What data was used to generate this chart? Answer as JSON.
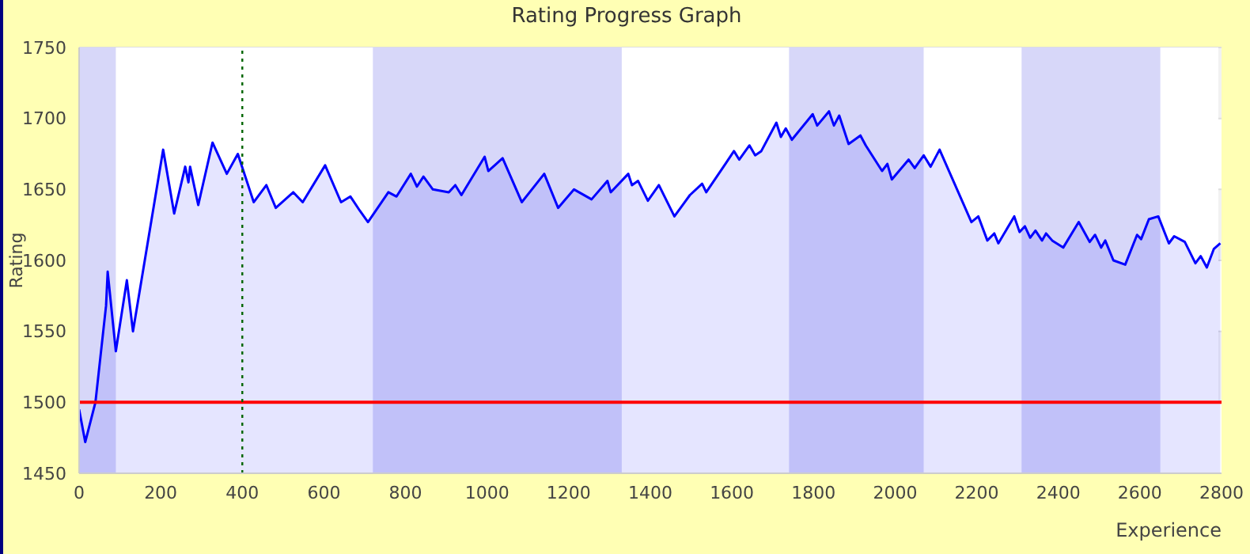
{
  "chart_data": {
    "type": "area",
    "title": "Rating Progress Graph",
    "xlabel": "Experience",
    "ylabel": "Rating",
    "x": [
      0,
      15,
      40,
      66,
      70,
      90,
      117,
      132,
      206,
      233,
      260,
      268,
      272,
      292,
      327,
      362,
      389,
      428,
      459,
      482,
      525,
      548,
      603,
      642,
      665,
      688,
      708,
      758,
      778,
      813,
      828,
      844,
      867,
      906,
      922,
      937,
      994,
      1003,
      1038,
      1085,
      1140,
      1174,
      1213,
      1256,
      1295,
      1303,
      1346,
      1355,
      1370,
      1394,
      1421,
      1459,
      1497,
      1527,
      1537,
      1584,
      1605,
      1618,
      1643,
      1657,
      1672,
      1709,
      1720,
      1732,
      1747,
      1798,
      1809,
      1838,
      1850,
      1863,
      1886,
      1915,
      1928,
      1968,
      1981,
      1992,
      2033,
      2048,
      2070,
      2087,
      2109,
      2187,
      2204,
      2226,
      2243,
      2253,
      2292,
      2305,
      2318,
      2331,
      2344,
      2360,
      2370,
      2385,
      2412,
      2450,
      2477,
      2490,
      2505,
      2515,
      2535,
      2564,
      2593,
      2603,
      2622,
      2645,
      2671,
      2684,
      2710,
      2736,
      2749,
      2764,
      2781,
      2797
    ],
    "series": [
      {
        "color": "#0000ff",
        "values": [
          1495,
          1472,
          1500,
          1568,
          1592,
          1536,
          1586,
          1550,
          1678,
          1633,
          1666,
          1655,
          1666,
          1639,
          1683,
          1661,
          1675,
          1641,
          1653,
          1637,
          1648,
          1641,
          1667,
          1641,
          1645,
          1635,
          1627,
          1648,
          1645,
          1661,
          1652,
          1659,
          1650,
          1648,
          1653,
          1646,
          1673,
          1663,
          1672,
          1641,
          1661,
          1637,
          1650,
          1643,
          1656,
          1648,
          1661,
          1653,
          1656,
          1642,
          1653,
          1631,
          1646,
          1654,
          1648,
          1668,
          1677,
          1671,
          1681,
          1674,
          1677,
          1697,
          1687,
          1693,
          1685,
          1703,
          1695,
          1705,
          1695,
          1702,
          1682,
          1688,
          1681,
          1663,
          1668,
          1657,
          1671,
          1665,
          1674,
          1666,
          1678,
          1627,
          1631,
          1614,
          1619,
          1612,
          1631,
          1620,
          1624,
          1616,
          1621,
          1614,
          1619,
          1614,
          1609,
          1627,
          1613,
          1618,
          1609,
          1614,
          1600,
          1597,
          1618,
          1615,
          1629,
          1631,
          1612,
          1617,
          1613,
          1598,
          1603,
          1595,
          1608,
          1612
        ]
      }
    ],
    "xlim": [
      0,
      2800
    ],
    "xticks": [
      0,
      200,
      400,
      600,
      800,
      1000,
      1200,
      1400,
      1600,
      1800,
      2000,
      2200,
      2400,
      2600,
      2800
    ],
    "ylim": [
      1450,
      1750
    ],
    "yticks": [
      1450,
      1500,
      1550,
      1600,
      1650,
      1700,
      1750
    ],
    "grid": "y",
    "ref_lines": [
      {
        "axis": "y",
        "value": 1500,
        "color": "#ff0000",
        "line_style": "solid"
      },
      {
        "axis": "x",
        "value": 400,
        "color": "#006400",
        "line_style": "dotted"
      }
    ],
    "bands": [
      {
        "axis": "x",
        "from": 0,
        "to": 90,
        "color": "#cdcdf8"
      },
      {
        "axis": "x",
        "from": 720,
        "to": 1330,
        "color": "#cdcdf8"
      },
      {
        "axis": "x",
        "from": 1740,
        "to": 2070,
        "color": "#cdcdf8"
      },
      {
        "axis": "x",
        "from": 2310,
        "to": 2650,
        "color": "#cdcdf8"
      }
    ]
  }
}
